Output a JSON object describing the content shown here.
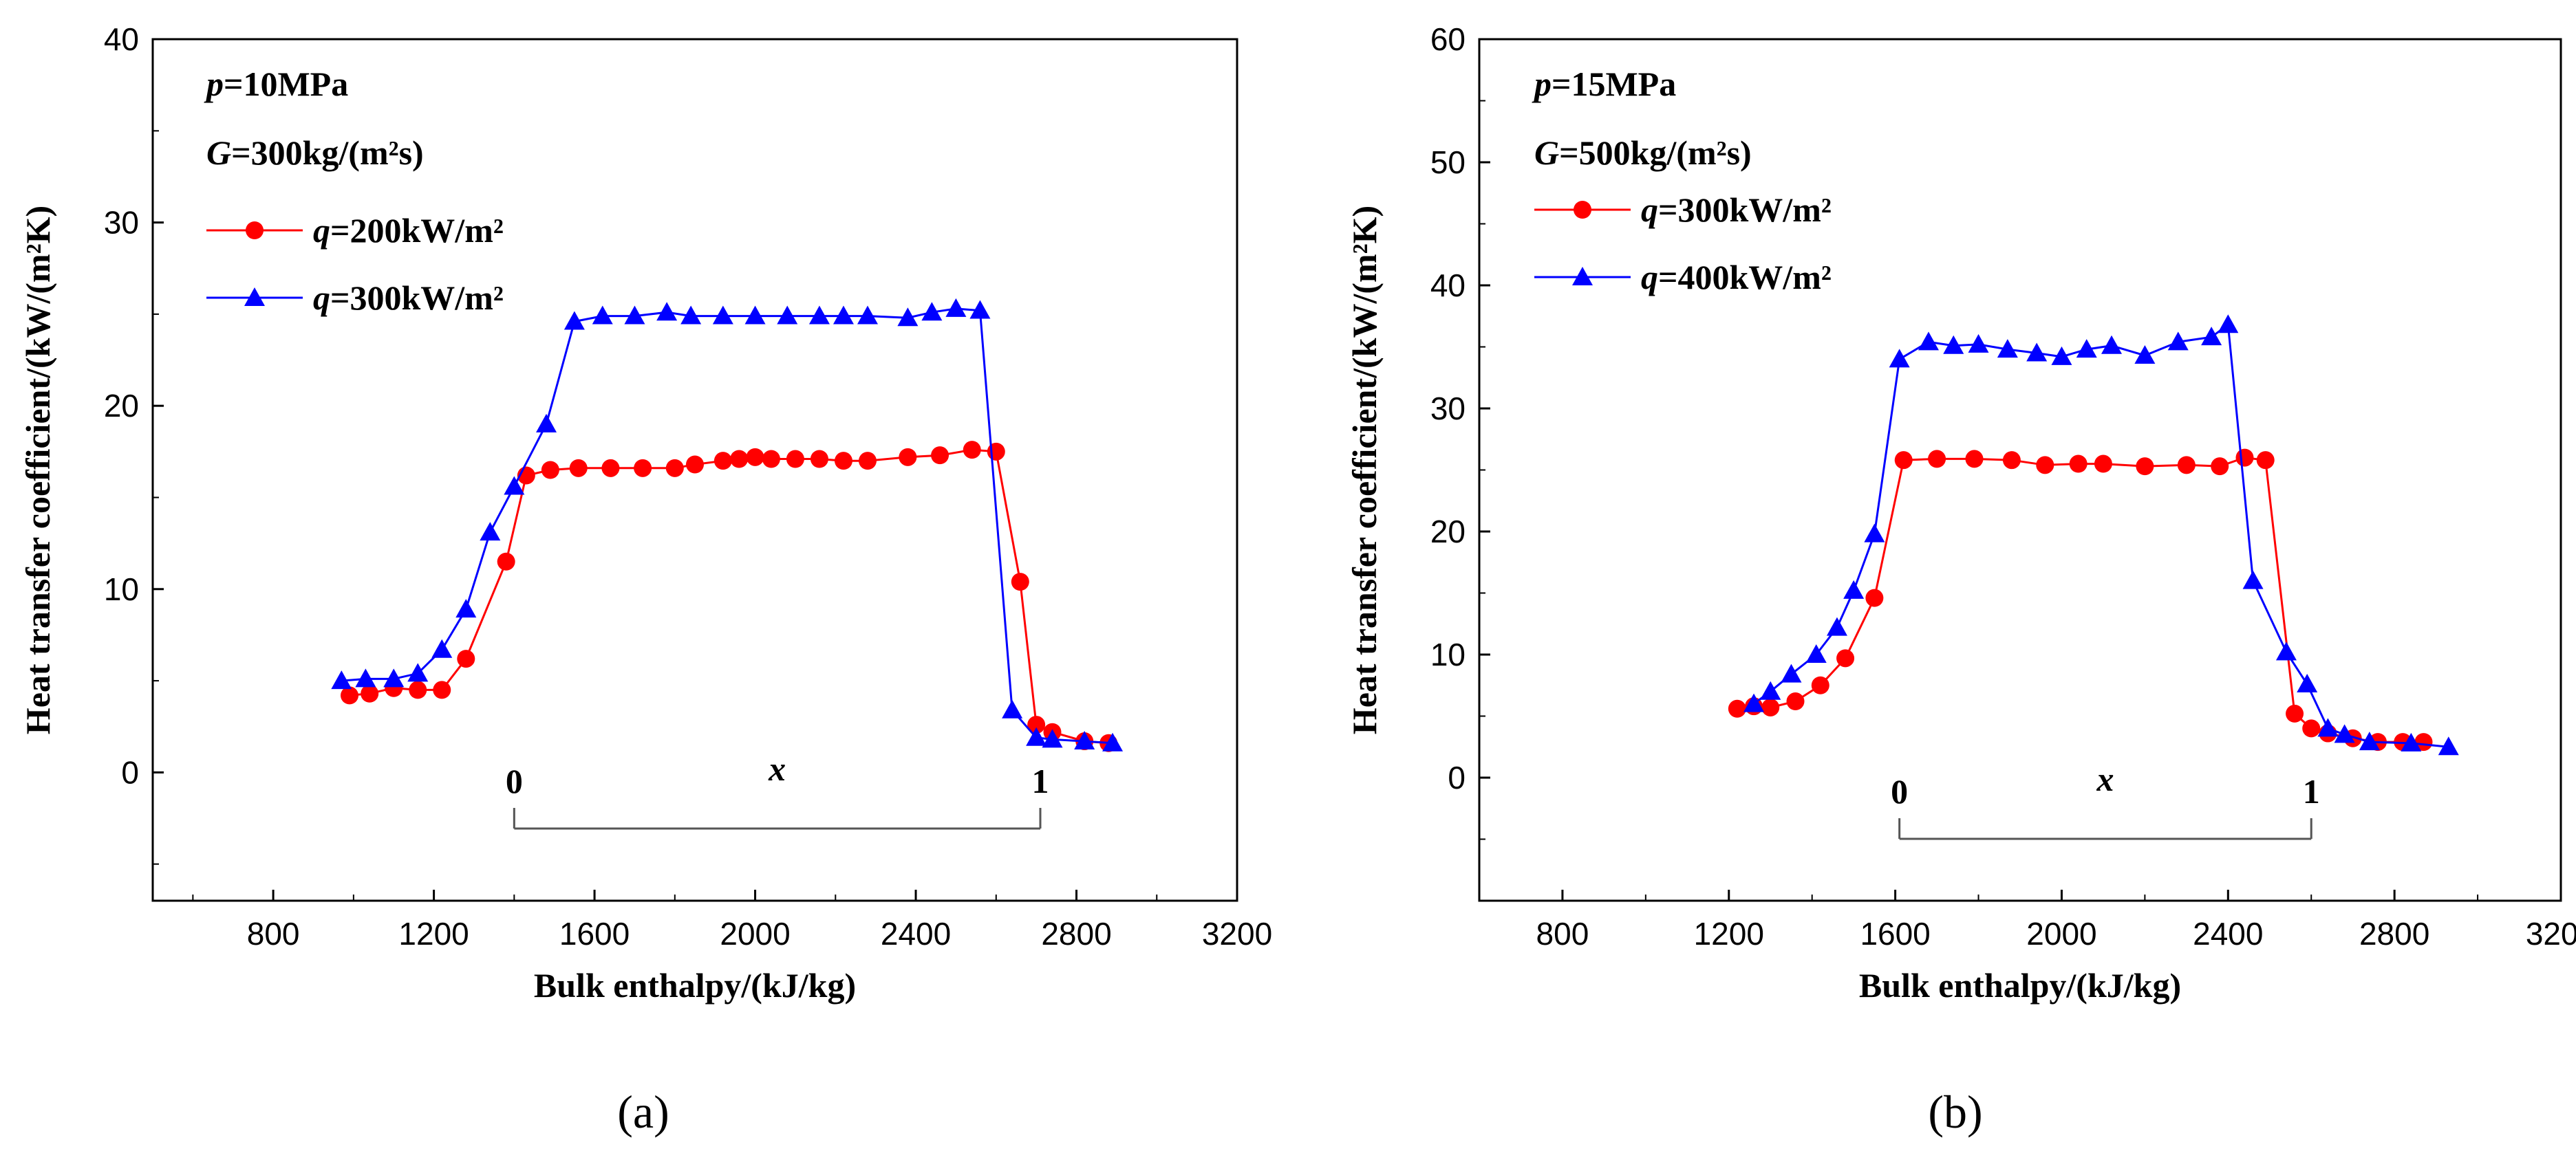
{
  "chart_data": [
    {
      "type": "line",
      "panel_label": "(a)",
      "xlabel": "Bulk enthalpy/(kJ/kg)",
      "ylabel": "Heat transfer coefficient/(kW/(m²K)",
      "xlim": [
        500,
        3200
      ],
      "ylim": [
        -7,
        40
      ],
      "xticks": [
        800,
        1200,
        1600,
        2000,
        2400,
        2800,
        3200
      ],
      "yticks": [
        0,
        10,
        20,
        30,
        40
      ],
      "xtick_labels": [
        "800",
        "1200",
        "1600",
        "2000",
        "2400",
        "2800",
        "3200"
      ],
      "ytick_labels": [
        "0",
        "10",
        "20",
        "30",
        "40"
      ],
      "conditions": [
        "p=10MPa",
        "G=300kg/(m²s)"
      ],
      "quality_bracket": {
        "start_label": "0",
        "end_label": "1",
        "mid_label": "x",
        "x_start": 1400,
        "x_end": 2710
      },
      "series": [
        {
          "name": "q=200kW/m²",
          "color": "#ff0000",
          "marker": "circle",
          "x": [
            990,
            1040,
            1100,
            1160,
            1220,
            1280,
            1380,
            1430,
            1490,
            1560,
            1640,
            1720,
            1800,
            1850,
            1920,
            1960,
            2000,
            2040,
            2100,
            2160,
            2220,
            2280,
            2380,
            2460,
            2540,
            2600,
            2660,
            2700,
            2740,
            2820,
            2880
          ],
          "y": [
            4.2,
            4.3,
            4.6,
            4.5,
            4.5,
            6.2,
            11.5,
            16.2,
            16.5,
            16.6,
            16.6,
            16.6,
            16.6,
            16.8,
            17.0,
            17.1,
            17.2,
            17.1,
            17.1,
            17.1,
            17.0,
            17.0,
            17.2,
            17.3,
            17.6,
            17.5,
            10.4,
            2.6,
            2.2,
            1.7,
            1.6
          ]
        },
        {
          "name": "q=300kW/m²",
          "color": "#0000ff",
          "marker": "triangle",
          "x": [
            970,
            1030,
            1100,
            1160,
            1220,
            1280,
            1340,
            1400,
            1480,
            1550,
            1620,
            1700,
            1780,
            1840,
            1920,
            2000,
            2080,
            2160,
            2220,
            2280,
            2380,
            2440,
            2500,
            2560,
            2640,
            2700,
            2740,
            2820,
            2890
          ],
          "y": [
            5.0,
            5.1,
            5.1,
            5.4,
            6.7,
            8.9,
            13.1,
            15.6,
            19.0,
            24.6,
            24.9,
            24.9,
            25.1,
            24.9,
            24.9,
            24.9,
            24.9,
            24.9,
            24.9,
            24.9,
            24.8,
            25.1,
            25.3,
            25.2,
            3.4,
            1.9,
            1.8,
            1.7,
            1.6
          ]
        }
      ]
    },
    {
      "type": "line",
      "panel_label": "(b)",
      "xlabel": "Bulk enthalpy/(kJ/kg)",
      "ylabel": "Heat transfer coefficient/(kW/(m²K)",
      "xlim": [
        600,
        3200
      ],
      "ylim": [
        -10,
        60
      ],
      "xticks": [
        800,
        1200,
        1600,
        2000,
        2400,
        2800,
        3200
      ],
      "yticks": [
        0,
        10,
        20,
        30,
        40,
        50,
        60
      ],
      "xtick_labels": [
        "800",
        "1200",
        "1600",
        "2000",
        "2400",
        "2800",
        "3200"
      ],
      "ytick_labels": [
        "0",
        "10",
        "20",
        "30",
        "40",
        "50",
        "60"
      ],
      "conditions": [
        "p=15MPa",
        "G=500kg/(m²s)"
      ],
      "quality_bracket": {
        "start_label": "0",
        "end_label": "1",
        "mid_label": "x",
        "x_start": 1610,
        "x_end": 2600
      },
      "series": [
        {
          "name": "q=300kW/m²",
          "color": "#ff0000",
          "marker": "circle",
          "x": [
            1220,
            1260,
            1300,
            1360,
            1420,
            1480,
            1550,
            1620,
            1700,
            1790,
            1880,
            1960,
            2040,
            2100,
            2200,
            2300,
            2380,
            2440,
            2490,
            2560,
            2600,
            2640,
            2700,
            2760,
            2820,
            2870
          ],
          "y": [
            5.6,
            5.8,
            5.7,
            6.2,
            7.5,
            9.7,
            14.6,
            25.8,
            25.9,
            25.9,
            25.8,
            25.4,
            25.5,
            25.5,
            25.3,
            25.4,
            25.3,
            26.0,
            25.8,
            5.2,
            4.0,
            3.6,
            3.2,
            2.9,
            2.9,
            2.9
          ]
        },
        {
          "name": "q=400kW/m²",
          "color": "#0000ff",
          "marker": "triangle",
          "x": [
            1260,
            1300,
            1350,
            1410,
            1460,
            1500,
            1550,
            1610,
            1680,
            1740,
            1800,
            1870,
            1940,
            2000,
            2060,
            2120,
            2200,
            2280,
            2360,
            2400,
            2460,
            2540,
            2590,
            2640,
            2680,
            2740,
            2840,
            2930
          ],
          "y": [
            6.0,
            7.0,
            8.4,
            10.0,
            12.2,
            15.2,
            19.8,
            34.0,
            35.4,
            35.1,
            35.2,
            34.8,
            34.5,
            34.2,
            34.8,
            35.1,
            34.3,
            35.4,
            35.8,
            36.8,
            16.0,
            10.2,
            7.6,
            4.0,
            3.5,
            2.9,
            2.8,
            2.5
          ]
        }
      ]
    }
  ],
  "captions": [
    "(a)",
    "(b)"
  ]
}
